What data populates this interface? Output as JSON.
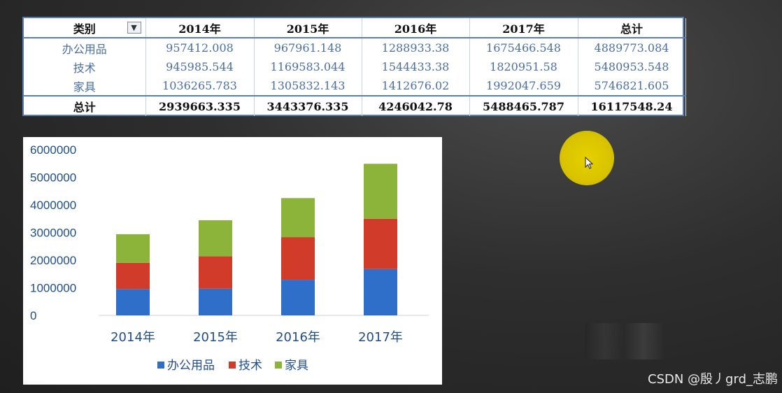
{
  "table": {
    "headers": [
      "类别",
      "2014年",
      "2015年",
      "2016年",
      "2017年",
      "总计"
    ],
    "rows": [
      {
        "label": "办公用品",
        "values": [
          "957412.008",
          "967961.148",
          "1288933.38",
          "1675466.548",
          "4889773.084"
        ]
      },
      {
        "label": "技术",
        "values": [
          "945985.544",
          "1169583.044",
          "1544433.38",
          "1820951.58",
          "5480953.548"
        ]
      },
      {
        "label": "家具",
        "values": [
          "1036265.783",
          "1305832.143",
          "1412676.02",
          "1992047.659",
          "5746821.605"
        ]
      }
    ],
    "total": {
      "label": "总计",
      "values": [
        "2939663.335",
        "3443376.335",
        "4246042.78",
        "5488465.787",
        "16117548.24"
      ]
    }
  },
  "chart_data": {
    "type": "bar",
    "stacked": true,
    "categories": [
      "2014年",
      "2015年",
      "2016年",
      "2017年"
    ],
    "series": [
      {
        "name": "办公用品",
        "color": "#2f6fc9",
        "values": [
          957412.008,
          967961.148,
          1288933.38,
          1675466.548
        ]
      },
      {
        "name": "技术",
        "color": "#d13b2a",
        "values": [
          945985.544,
          1169583.044,
          1544433.38,
          1820951.58
        ]
      },
      {
        "name": "家具",
        "color": "#8db43a",
        "values": [
          1036265.783,
          1305832.143,
          1412676.02,
          1992047.659
        ]
      }
    ],
    "ylim": [
      0,
      6000000
    ],
    "yticks": [
      0,
      1000000,
      2000000,
      3000000,
      4000000,
      5000000,
      6000000
    ],
    "ytick_labels": [
      "0",
      "1000000",
      "2000000",
      "3000000",
      "4000000",
      "5000000",
      "6000000"
    ],
    "grid": false,
    "legend": "bottom"
  },
  "watermark": "CSDN @殷丿grd_志鹏"
}
